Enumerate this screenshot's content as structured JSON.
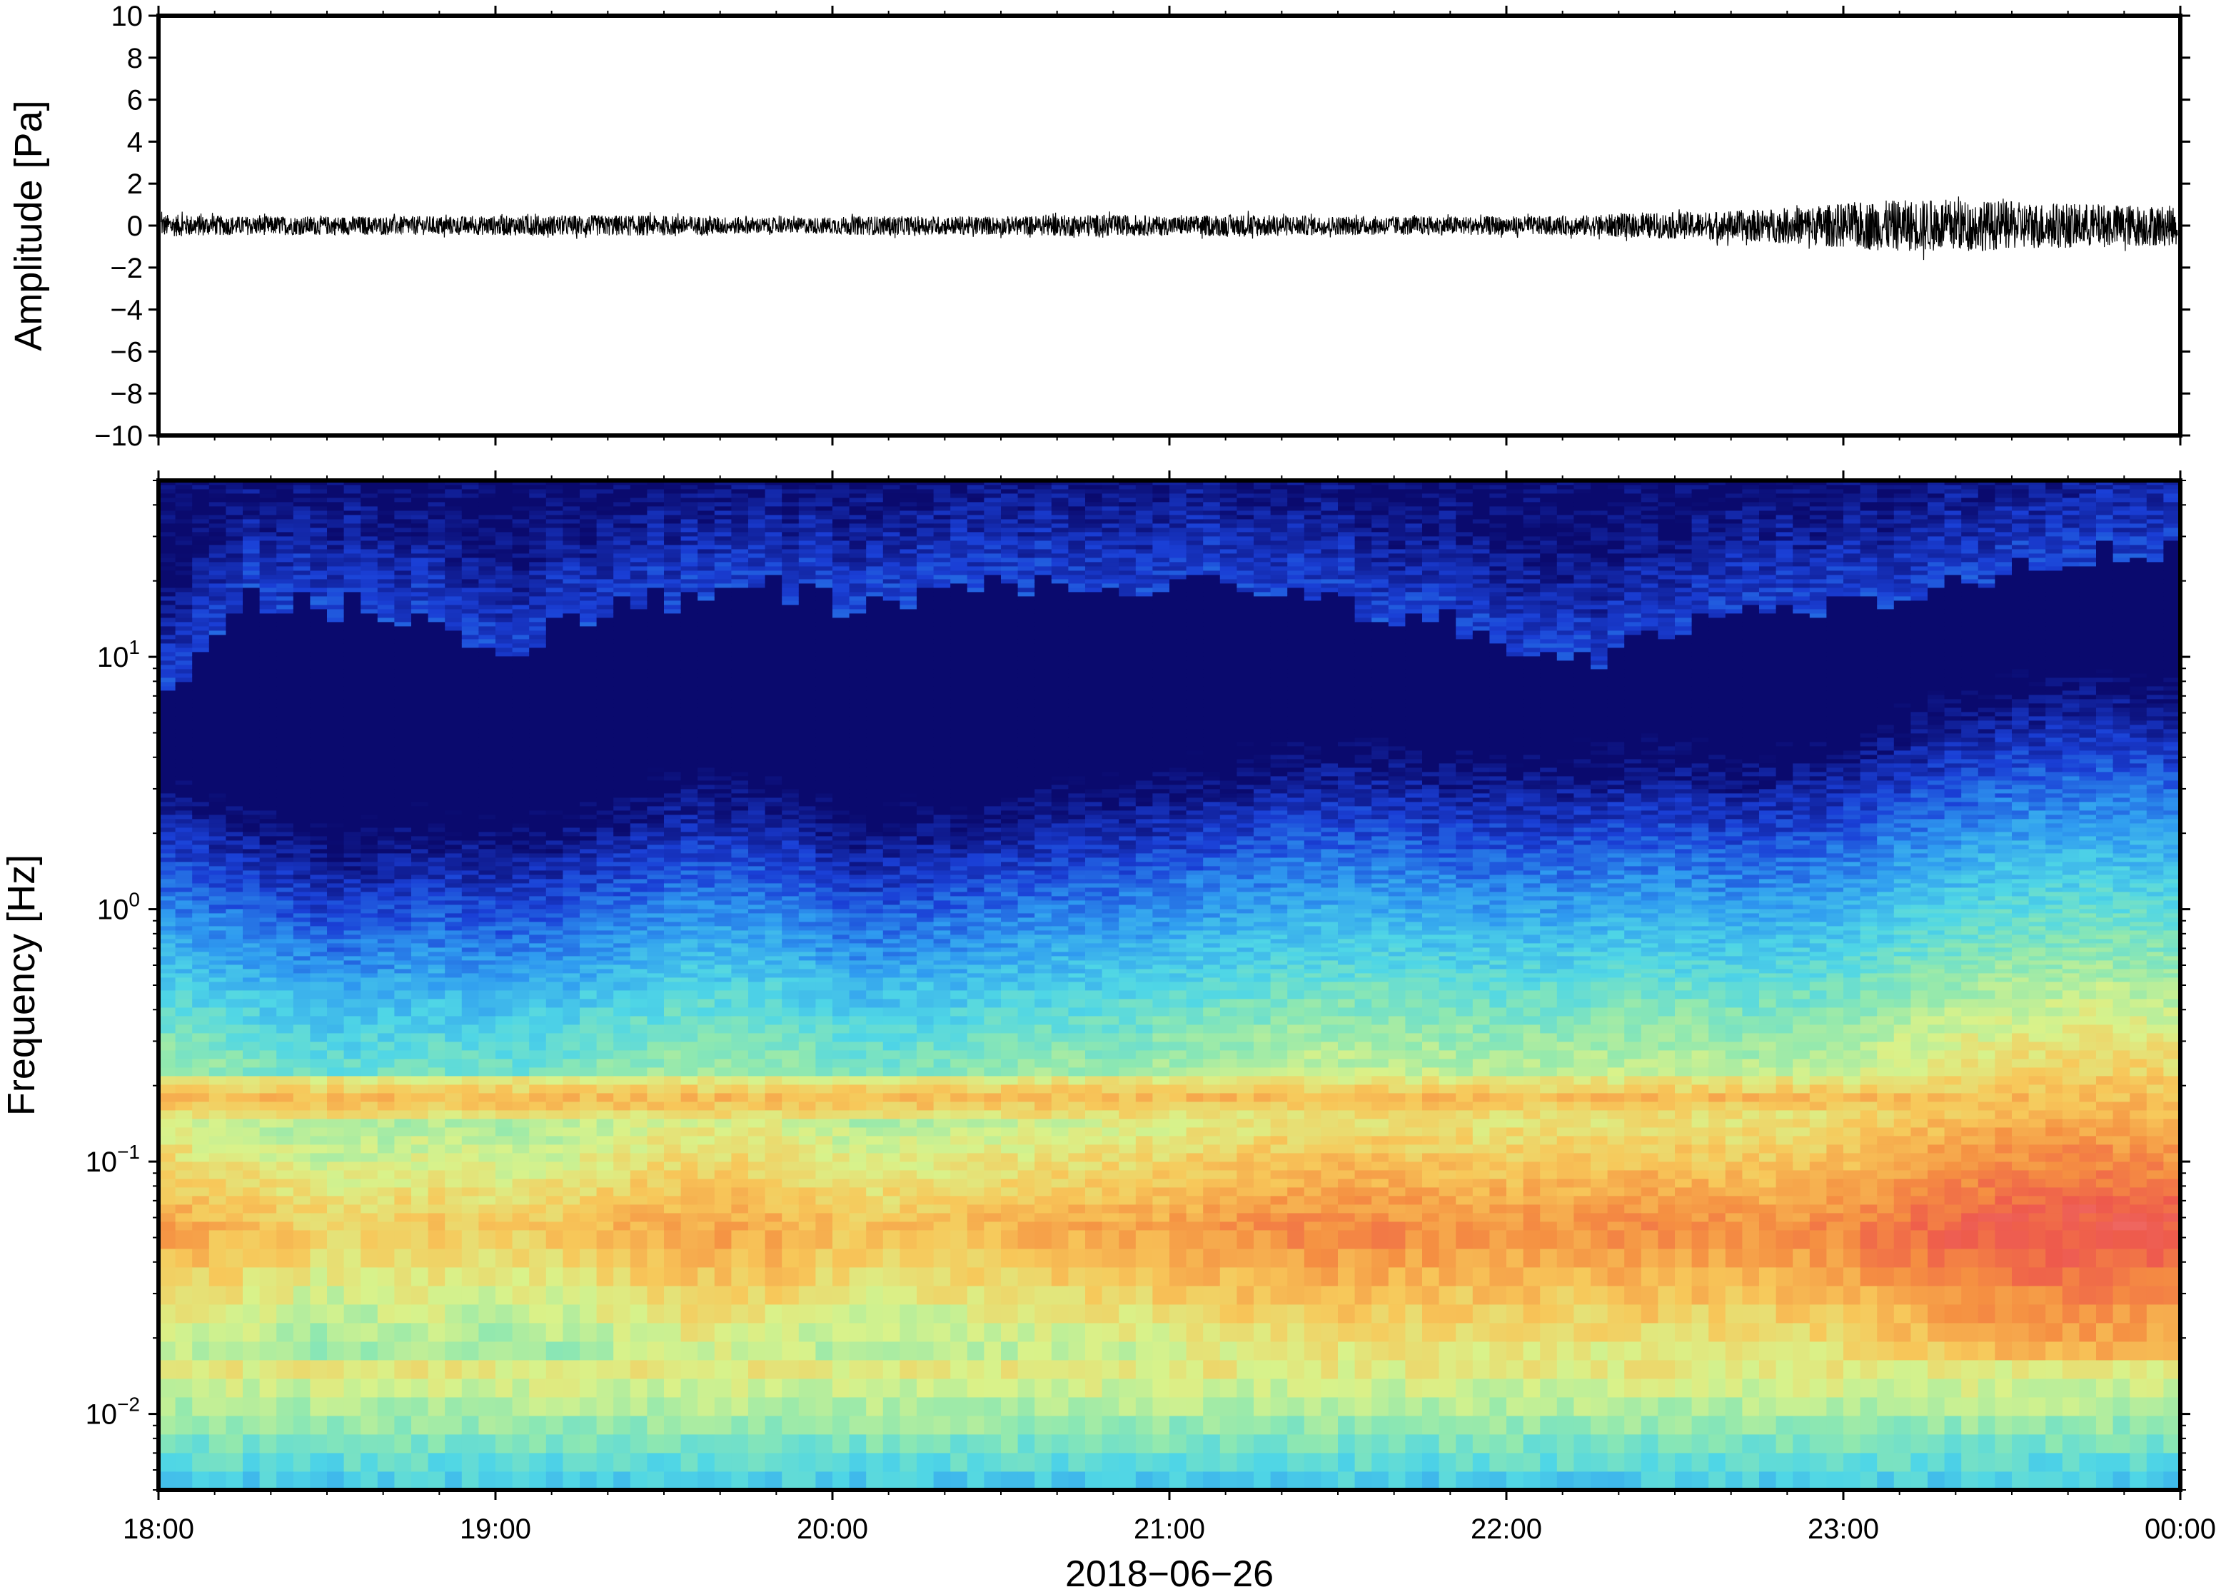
{
  "chart_data": [
    {
      "type": "line",
      "panel": "waveform",
      "ylabel": "Amplitude [Pa]",
      "ylim": [
        -10,
        10
      ],
      "yticks": [
        -10,
        -8,
        -6,
        -4,
        -2,
        0,
        2,
        4,
        6,
        8,
        10
      ],
      "ytick_labels": [
        "−10",
        "−8",
        "−6",
        "−4",
        "−2",
        "0",
        "2",
        "4",
        "6",
        "8",
        "10"
      ],
      "xlim": [
        "2018-06-26 18:00",
        "2018-06-27 00:00"
      ],
      "series": [
        {
          "color": "#000000",
          "x": [
            "18:00",
            "18:15",
            "18:30",
            "18:45",
            "19:00",
            "19:15",
            "19:30",
            "19:45",
            "20:00",
            "20:15",
            "20:30",
            "20:45",
            "21:00",
            "21:15",
            "21:30",
            "21:45",
            "22:00",
            "22:15",
            "22:30",
            "22:45",
            "23:00",
            "23:10",
            "23:20",
            "23:30",
            "23:40",
            "23:50",
            "00:00"
          ],
          "envelope_max": [
            0.6,
            0.5,
            0.5,
            0.5,
            0.5,
            0.5,
            0.6,
            0.5,
            0.4,
            0.5,
            0.5,
            0.5,
            0.6,
            0.5,
            0.6,
            0.5,
            0.5,
            0.5,
            0.5,
            0.6,
            0.7,
            0.9,
            1.2,
            1.3,
            1.2,
            1.1,
            1.0
          ],
          "envelope_min": [
            -0.6,
            -0.5,
            -0.5,
            -0.5,
            -0.5,
            -0.6,
            -0.5,
            -0.5,
            -0.4,
            -0.5,
            -0.5,
            -0.5,
            -0.6,
            -0.5,
            -0.6,
            -0.5,
            -0.5,
            -0.5,
            -0.5,
            -0.7,
            -0.8,
            -1.0,
            -1.4,
            -1.5,
            -1.3,
            -1.2,
            -1.1
          ]
        }
      ]
    },
    {
      "type": "heatmap",
      "panel": "spectrogram",
      "ylabel": "Frequency [Hz]",
      "xlabel": "2018−06−26",
      "yscale": "log",
      "ylim": [
        0.005,
        50
      ],
      "yticks": [
        {
          "base": "10",
          "exp": "−2",
          "value": 0.01
        },
        {
          "base": "10",
          "exp": "−1",
          "value": 0.1
        },
        {
          "base": "10",
          "exp": "0",
          "value": 1
        },
        {
          "base": "10",
          "exp": "1",
          "value": 10
        }
      ],
      "xticks": [
        "18:00",
        "19:00",
        "20:00",
        "21:00",
        "22:00",
        "23:00",
        "00:00"
      ],
      "colormap": [
        "#0a0a6e",
        "#1a3fd6",
        "#2f9bf0",
        "#4fd6e6",
        "#8fe8b0",
        "#d9f28a",
        "#f7c85a",
        "#f59042",
        "#ee5a4c",
        "#f07a80"
      ],
      "time_segments": [
        "18:00",
        "18:15",
        "18:30",
        "18:45",
        "19:00",
        "19:15",
        "19:30",
        "19:45",
        "20:00",
        "20:15",
        "20:30",
        "20:45",
        "21:00",
        "21:15",
        "21:30",
        "21:45",
        "22:00",
        "22:15",
        "22:30",
        "22:45",
        "23:00",
        "23:15",
        "23:30",
        "23:45"
      ],
      "upper_blue_edge_hz": [
        6,
        16,
        16,
        14,
        11,
        14,
        17,
        18,
        15,
        17,
        20,
        20,
        19,
        17,
        15,
        13,
        9,
        12,
        15,
        16,
        18,
        22,
        26,
        28
      ],
      "peak_band_hz": [
        0.04,
        0.04,
        0.05,
        0.05,
        0.05,
        0.05,
        0.05,
        0.05,
        0.05,
        0.05,
        0.05,
        0.05,
        0.05,
        0.05,
        0.05,
        0.05,
        0.05,
        0.05,
        0.05,
        0.05,
        0.05,
        0.05,
        0.05,
        0.05
      ],
      "peak_intensity": [
        0.75,
        0.7,
        0.65,
        0.68,
        0.66,
        0.7,
        0.75,
        0.74,
        0.68,
        0.7,
        0.73,
        0.74,
        0.77,
        0.8,
        0.8,
        0.78,
        0.78,
        0.8,
        0.78,
        0.8,
        0.86,
        0.9,
        0.92,
        0.9
      ],
      "secondary_band_hz": 0.17
    }
  ]
}
